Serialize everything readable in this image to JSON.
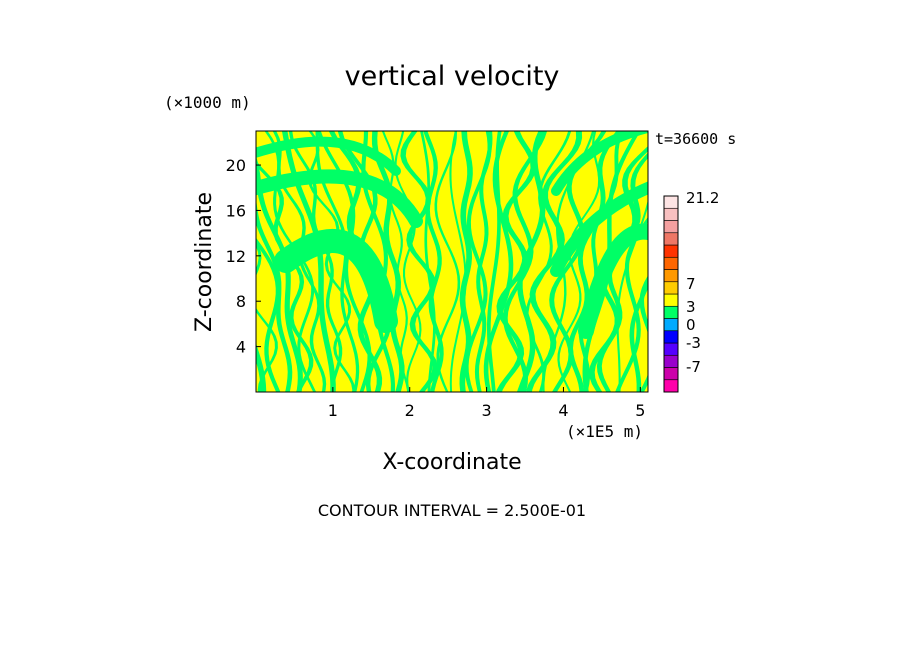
{
  "chart_data": {
    "type": "heatmap",
    "title": "vertical velocity",
    "xlabel": "X-coordinate",
    "ylabel": "Z-coordinate",
    "x_unit": "(×1E5 m)",
    "y_unit": "(×1000 m)",
    "time_label": "t=36600 s",
    "footer": "CONTOUR INTERVAL = 2.500E-01",
    "xlim": [
      0,
      5.1
    ],
    "ylim": [
      0,
      23
    ],
    "x_ticks": [
      1,
      2,
      3,
      4,
      5
    ],
    "y_ticks": [
      4,
      8,
      12,
      16,
      20
    ],
    "field_colors": {
      "positive": "#ffff00",
      "negative": "#00ff66"
    },
    "colorbar": {
      "bins": [
        {
          "color": "#ff00aa"
        },
        {
          "color": "#cc00aa"
        },
        {
          "color": "#9900cc"
        },
        {
          "color": "#5500ff"
        },
        {
          "color": "#0000ff"
        },
        {
          "color": "#00aaff"
        },
        {
          "color": "#00ff66"
        },
        {
          "color": "#ffff00"
        },
        {
          "color": "#ffcc00"
        },
        {
          "color": "#ff9900"
        },
        {
          "color": "#ff6600"
        },
        {
          "color": "#ff3300"
        },
        {
          "color": "#ee7766"
        },
        {
          "color": "#f4a0a0"
        },
        {
          "color": "#f8c0c0"
        },
        {
          "color": "#fde4e4"
        }
      ],
      "labels": [
        "21.2",
        "7",
        "3",
        "0",
        "-3",
        "-7"
      ]
    }
  }
}
